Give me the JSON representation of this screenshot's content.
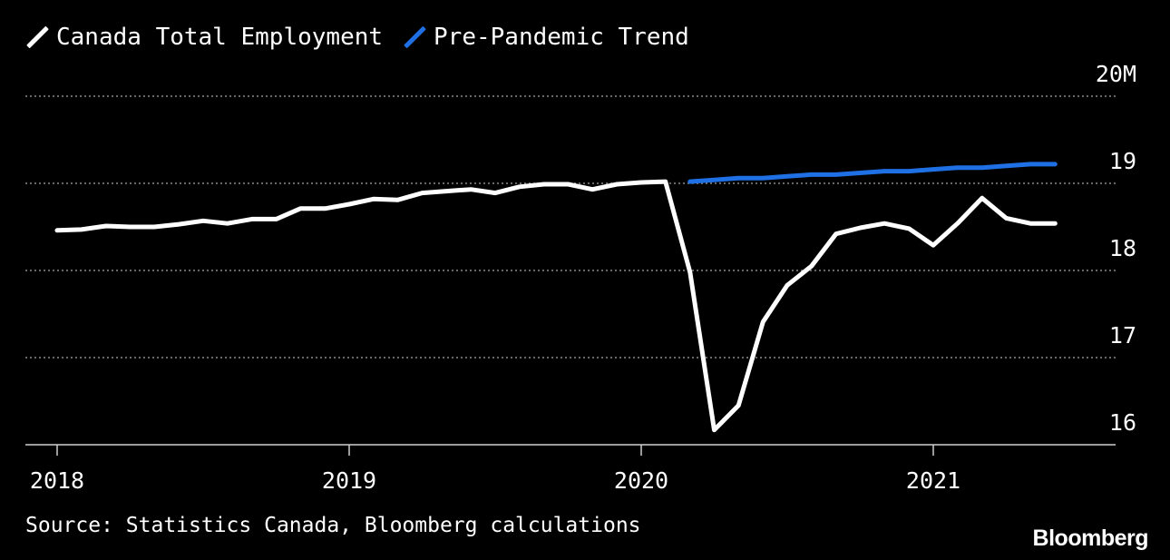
{
  "legend": [
    {
      "label": "Canada Total Employment",
      "color": "#ffffff"
    },
    {
      "label": "Pre-Pandemic Trend",
      "color": "#1f6fe5"
    }
  ],
  "source": "Source: Statistics Canada, Bloomberg calculations",
  "brand": "Bloomberg",
  "chart_data": {
    "type": "line",
    "title": "",
    "xlabel": "",
    "ylabel": "",
    "ylim": [
      15.9,
      20
    ],
    "y_ticks": [
      {
        "value": 20,
        "label": "20M"
      },
      {
        "value": 19,
        "label": "19"
      },
      {
        "value": 18,
        "label": "18"
      },
      {
        "value": 17,
        "label": "17"
      },
      {
        "value": 16,
        "label": "16"
      }
    ],
    "x_ticks": [
      {
        "value": 2018.0,
        "label": "2018"
      },
      {
        "value": 2019.0,
        "label": "2019"
      },
      {
        "value": 2020.0,
        "label": "2020"
      },
      {
        "value": 2021.0,
        "label": "2021"
      }
    ],
    "xlim": [
      2017.9,
      2021.6
    ],
    "grid": true,
    "legend_position": "top-left",
    "series": [
      {
        "name": "Canada Total Employment",
        "color": "#ffffff",
        "x": [
          2018.0,
          2018.083,
          2018.167,
          2018.25,
          2018.333,
          2018.417,
          2018.5,
          2018.583,
          2018.667,
          2018.75,
          2018.833,
          2018.917,
          2019.0,
          2019.083,
          2019.167,
          2019.25,
          2019.333,
          2019.417,
          2019.5,
          2019.583,
          2019.667,
          2019.75,
          2019.833,
          2019.917,
          2020.0,
          2020.083,
          2020.167,
          2020.25,
          2020.333,
          2020.417,
          2020.5,
          2020.583,
          2020.667,
          2020.75,
          2020.833,
          2020.917,
          2021.0,
          2021.083,
          2021.167,
          2021.25,
          2021.333,
          2021.417
        ],
        "values": [
          18.46,
          18.47,
          18.51,
          18.5,
          18.5,
          18.53,
          18.57,
          18.54,
          18.59,
          18.59,
          18.71,
          18.71,
          18.76,
          18.82,
          18.81,
          18.89,
          18.91,
          18.93,
          18.89,
          18.96,
          18.99,
          18.99,
          18.93,
          18.99,
          19.01,
          19.02,
          17.98,
          16.17,
          16.45,
          17.41,
          17.83,
          18.05,
          18.42,
          18.49,
          18.54,
          18.48,
          18.29,
          18.54,
          18.83,
          18.6,
          18.54,
          18.54
        ]
      },
      {
        "name": "Pre-Pandemic Trend",
        "color": "#1f6fe5",
        "x": [
          2020.167,
          2020.25,
          2020.333,
          2020.417,
          2020.5,
          2020.583,
          2020.667,
          2020.75,
          2020.833,
          2020.917,
          2021.0,
          2021.083,
          2021.167,
          2021.25,
          2021.333,
          2021.417
        ],
        "values": [
          19.02,
          19.04,
          19.06,
          19.06,
          19.08,
          19.1,
          19.1,
          19.12,
          19.14,
          19.14,
          19.16,
          19.18,
          19.18,
          19.2,
          19.22,
          19.22
        ]
      }
    ]
  }
}
